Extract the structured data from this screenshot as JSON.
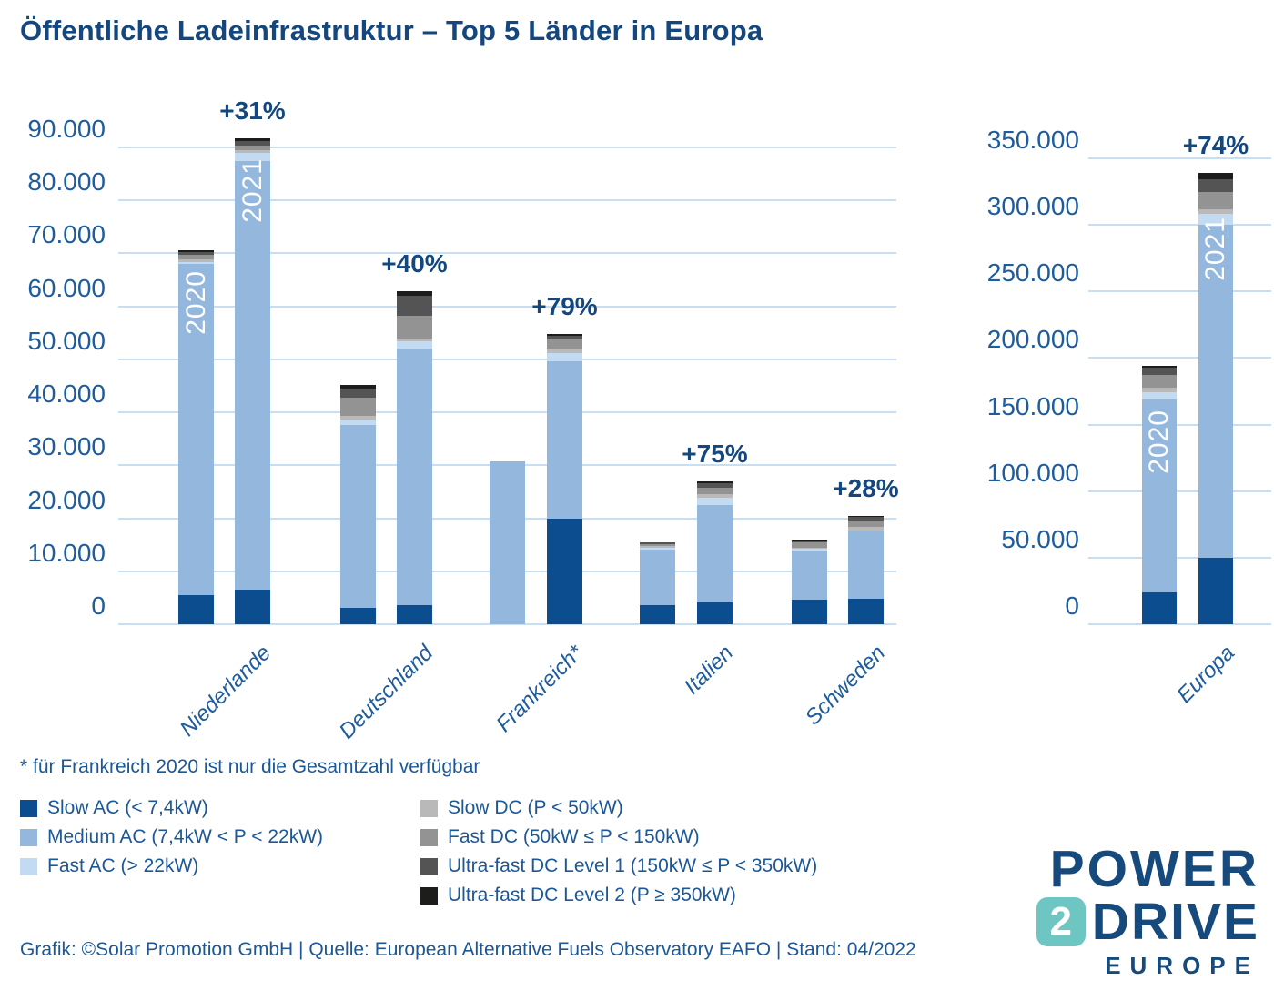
{
  "title": "Öffentliche Ladeinfrastruktur – Top 5 Länder in Europa",
  "footnote": "* für Frankreich 2020 ist nur die Gesamtzahl verfügbar",
  "footer": "Grafik: ©Solar Promotion GmbH | Quelle: European Alternative Fuels Observatory EAFO | Stand: 04/2022",
  "logo": {
    "line1": "POWER",
    "badge": "2",
    "line2": "DRIVE",
    "line3": "EUROPE",
    "teal": "#6ec6c3",
    "blue": "#174a7c"
  },
  "colors": {
    "slow_ac": "#0c4d90",
    "medium_ac": "#94b7dd",
    "fast_ac": "#c3dbf2",
    "slow_dc": "#b9b9b9",
    "fast_dc": "#939393",
    "uf1": "#545454",
    "uf2": "#1d1d1b",
    "grid": "#cadef2",
    "text_blue": "#1f5c9c",
    "title_blue": "#14477d"
  },
  "legend": {
    "col1": [
      {
        "key": "slow_ac",
        "label": "Slow AC (< 7,4kW)"
      },
      {
        "key": "medium_ac",
        "label": "Medium AC (7,4kW < P < 22kW)"
      },
      {
        "key": "fast_ac",
        "label": "Fast AC (> 22kW)"
      }
    ],
    "col2": [
      {
        "key": "slow_dc",
        "label": "Slow DC (P < 50kW)"
      },
      {
        "key": "fast_dc",
        "label": "Fast DC (50kW ≤ P < 150kW)"
      },
      {
        "key": "uf1",
        "label": "Ultra-fast DC Level 1 (150kW ≤ P < 350kW)"
      },
      {
        "key": "uf2",
        "label": "Ultra-fast DC Level 2 (P ≥ 350kW)"
      }
    ]
  },
  "chart_data": [
    {
      "name": "top5-countries",
      "type": "bar",
      "stacked": true,
      "ylim": [
        0,
        90000
      ],
      "ytick_step": 10000,
      "ytick_labels": [
        "0",
        "10.000",
        "20.000",
        "30.000",
        "40.000",
        "50.000",
        "60.000",
        "70.000",
        "80.000",
        "90.000"
      ],
      "grid": true,
      "stack_order": [
        "slow_ac",
        "medium_ac",
        "fast_ac",
        "slow_dc",
        "fast_dc",
        "uf1",
        "uf2"
      ],
      "categories": [
        "Niederlande",
        "Deutschland",
        "Frankreich*",
        "Italien",
        "Schweden"
      ],
      "growth_labels": [
        "+31%",
        "+40%",
        "+79%",
        "+75%",
        "+28%"
      ],
      "bars": [
        {
          "country": "Niederlande",
          "year": "2020",
          "show_year": true,
          "total": 70600,
          "segments": {
            "slow_ac": 5500,
            "medium_ac": 62500,
            "fast_ac": 300,
            "slow_dc": 500,
            "fast_dc": 1000,
            "uf1": 500,
            "uf2": 300
          }
        },
        {
          "country": "Niederlande",
          "year": "2021",
          "show_year": true,
          "total": 91700,
          "segments": {
            "slow_ac": 6500,
            "medium_ac": 80900,
            "fast_ac": 1600,
            "slow_dc": 500,
            "fast_dc": 900,
            "uf1": 800,
            "uf2": 500
          }
        },
        {
          "country": "Deutschland",
          "year": "2020",
          "show_year": false,
          "total": 45200,
          "segments": {
            "slow_ac": 3100,
            "medium_ac": 34500,
            "fast_ac": 900,
            "slow_dc": 800,
            "fast_dc": 3500,
            "uf1": 1700,
            "uf2": 700
          }
        },
        {
          "country": "Deutschland",
          "year": "2021",
          "show_year": false,
          "total": 62900,
          "segments": {
            "slow_ac": 3600,
            "medium_ac": 48500,
            "fast_ac": 1300,
            "slow_dc": 600,
            "fast_dc": 4200,
            "uf1": 3800,
            "uf2": 900
          }
        },
        {
          "country": "Frankreich*",
          "year": "2020",
          "show_year": false,
          "total": 30800,
          "total_only": true,
          "segments": {
            "medium_ac": 30800
          }
        },
        {
          "country": "Frankreich*",
          "year": "2021",
          "show_year": false,
          "total": 54800,
          "segments": {
            "slow_ac": 19900,
            "medium_ac": 29800,
            "fast_ac": 1500,
            "slow_dc": 900,
            "fast_dc": 1800,
            "uf1": 500,
            "uf2": 400
          }
        },
        {
          "country": "Italien",
          "year": "2020",
          "show_year": false,
          "total": 15500,
          "segments": {
            "slow_ac": 3600,
            "medium_ac": 10500,
            "fast_ac": 400,
            "slow_dc": 200,
            "fast_dc": 500,
            "uf1": 200,
            "uf2": 100
          }
        },
        {
          "country": "Italien",
          "year": "2021",
          "show_year": false,
          "total": 27000,
          "segments": {
            "slow_ac": 4100,
            "medium_ac": 18400,
            "fast_ac": 1400,
            "slow_dc": 700,
            "fast_dc": 1200,
            "uf1": 800,
            "uf2": 400
          }
        },
        {
          "country": "Schweden",
          "year": "2020",
          "show_year": false,
          "total": 16000,
          "segments": {
            "slow_ac": 4600,
            "medium_ac": 9300,
            "fast_ac": 300,
            "slow_dc": 300,
            "fast_dc": 900,
            "uf1": 400,
            "uf2": 200
          }
        },
        {
          "country": "Schweden",
          "year": "2021",
          "show_year": false,
          "total": 20400,
          "segments": {
            "slow_ac": 4800,
            "medium_ac": 12700,
            "fast_ac": 200,
            "slow_dc": 700,
            "fast_dc": 1200,
            "uf1": 600,
            "uf2": 200
          }
        }
      ]
    },
    {
      "name": "europe-total",
      "type": "bar",
      "stacked": true,
      "ylim": [
        0,
        350000
      ],
      "ytick_step": 50000,
      "ytick_labels": [
        "0",
        "50.000",
        "100.000",
        "150.000",
        "200.000",
        "250.000",
        "300.000",
        "350.000"
      ],
      "grid": true,
      "stack_order": [
        "slow_ac",
        "medium_ac",
        "fast_ac",
        "slow_dc",
        "fast_dc",
        "uf1",
        "uf2"
      ],
      "categories": [
        "Europa"
      ],
      "growth_labels": [
        "+74%"
      ],
      "bars": [
        {
          "country": "Europa",
          "year": "2020",
          "show_year": true,
          "total": 194400,
          "segments": {
            "slow_ac": 24000,
            "medium_ac": 144900,
            "fast_ac": 5400,
            "slow_dc": 3300,
            "fast_dc": 9400,
            "uf1": 5500,
            "uf2": 1900
          }
        },
        {
          "country": "Europa",
          "year": "2021",
          "show_year": true,
          "total": 339000,
          "segments": {
            "slow_ac": 50000,
            "medium_ac": 250300,
            "fast_ac": 8000,
            "slow_dc": 3400,
            "fast_dc": 13200,
            "uf1": 9100,
            "uf2": 5000
          }
        }
      ]
    }
  ]
}
